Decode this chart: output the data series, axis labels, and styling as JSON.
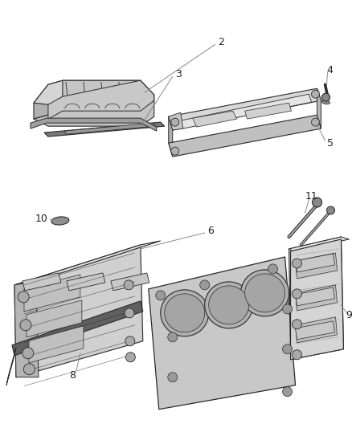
{
  "bg_color": "#ffffff",
  "fg_color": "#333333",
  "line_color": "#888888",
  "label_color": "#222222",
  "part_colors": {
    "dark": "#2a2a2a",
    "mid": "#666666",
    "light": "#aaaaaa",
    "lighter": "#cccccc",
    "bg_part": "#e8e8e8",
    "white": "#ffffff"
  },
  "figsize": [
    4.38,
    5.33
  ],
  "dpi": 100
}
